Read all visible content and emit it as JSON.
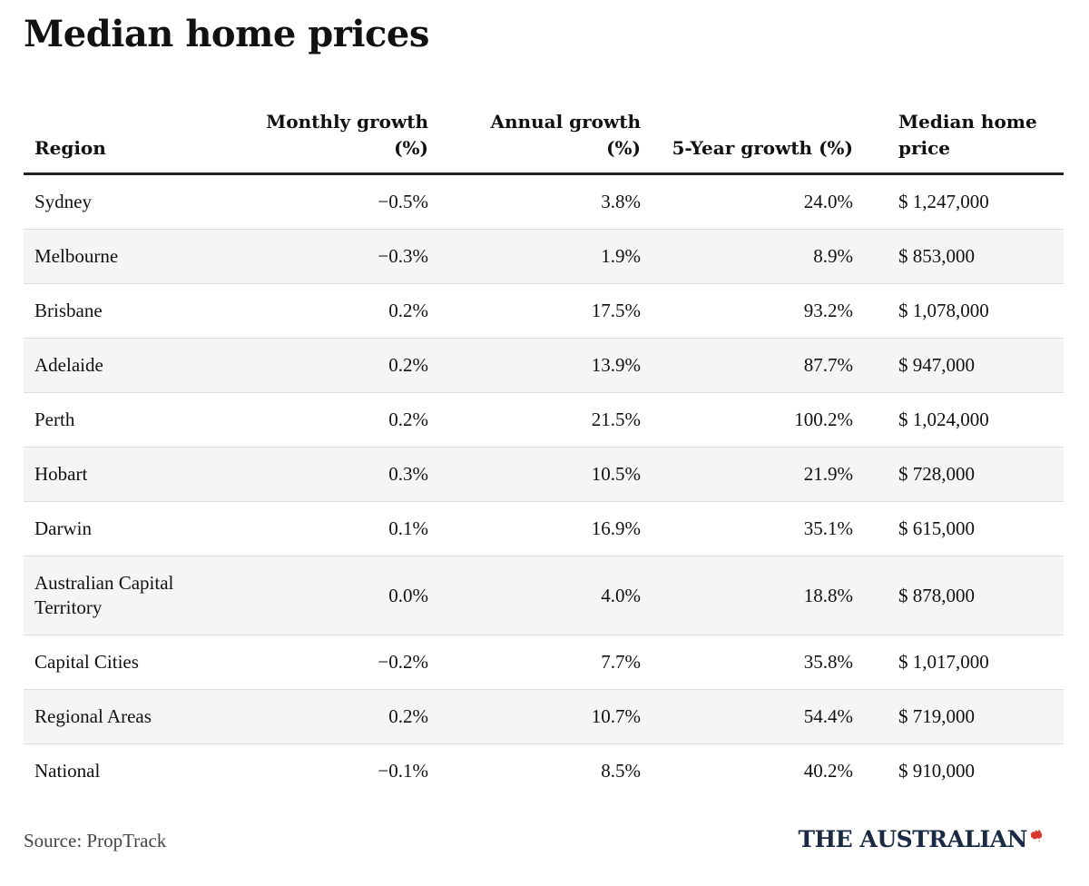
{
  "title": "Median home prices",
  "source": "Source: PropTrack",
  "brand": "THE AUSTRALIAN",
  "brand_mark_icon": "australia-map-icon",
  "colors": {
    "text": "#111111",
    "row_stripe": "#f5f5f5",
    "header_rule": "#222222",
    "brand_text": "#1b2a44",
    "brand_mark": "#d7382c"
  },
  "chart_data": {
    "type": "table",
    "title": "Median home prices",
    "columns": [
      "Region",
      "Monthly growth (%)",
      "Annual growth (%)",
      "5-Year growth (%)",
      "Median home price"
    ],
    "header": {
      "region": "Region",
      "monthly": "Monthly growth (%)",
      "annual": "Annual growth (%)",
      "five_year": "5-Year growth (%)",
      "price": "Median home price"
    },
    "rows": [
      {
        "region": "Sydney",
        "monthly": "−0.5%",
        "annual": "3.8%",
        "five_year": "24.0%",
        "price": "$ 1,247,000"
      },
      {
        "region": "Melbourne",
        "monthly": "−0.3%",
        "annual": "1.9%",
        "five_year": "8.9%",
        "price": "$ 853,000"
      },
      {
        "region": "Brisbane",
        "monthly": "0.2%",
        "annual": "17.5%",
        "five_year": "93.2%",
        "price": "$ 1,078,000"
      },
      {
        "region": "Adelaide",
        "monthly": "0.2%",
        "annual": "13.9%",
        "five_year": "87.7%",
        "price": "$ 947,000"
      },
      {
        "region": "Perth",
        "monthly": "0.2%",
        "annual": "21.5%",
        "five_year": "100.2%",
        "price": "$ 1,024,000"
      },
      {
        "region": "Hobart",
        "monthly": "0.3%",
        "annual": "10.5%",
        "five_year": "21.9%",
        "price": "$ 728,000"
      },
      {
        "region": "Darwin",
        "monthly": "0.1%",
        "annual": "16.9%",
        "five_year": "35.1%",
        "price": "$ 615,000"
      },
      {
        "region": "Australian Capital Territory",
        "monthly": "0.0%",
        "annual": "4.0%",
        "five_year": "18.8%",
        "price": "$ 878,000"
      },
      {
        "region": "Capital Cities",
        "monthly": "−0.2%",
        "annual": "7.7%",
        "five_year": "35.8%",
        "price": "$ 1,017,000"
      },
      {
        "region": "Regional Areas",
        "monthly": "0.2%",
        "annual": "10.7%",
        "five_year": "54.4%",
        "price": "$ 719,000"
      },
      {
        "region": "National",
        "monthly": "−0.1%",
        "annual": "8.5%",
        "five_year": "40.2%",
        "price": "$ 910,000"
      }
    ]
  }
}
